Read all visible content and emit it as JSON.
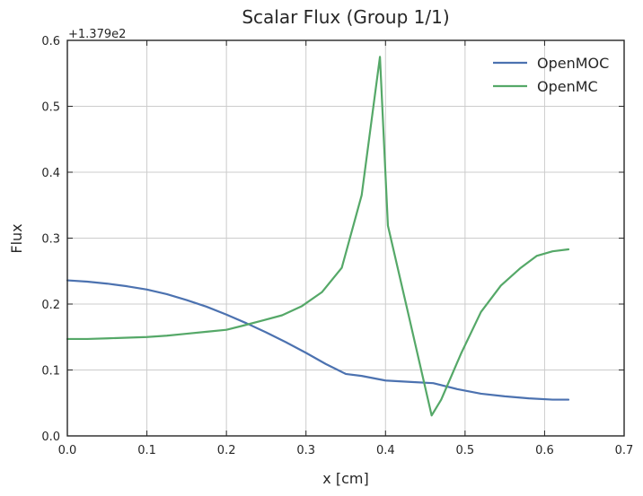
{
  "chart_data": {
    "type": "line",
    "title": "Scalar Flux (Group 1/1)",
    "xlabel": "x [cm]",
    "ylabel": "Flux",
    "y_offset_label": "+1.379e2",
    "xlim": [
      0.0,
      0.7
    ],
    "ylim": [
      0.0,
      0.6
    ],
    "xticks": [
      "0.0",
      "0.1",
      "0.2",
      "0.3",
      "0.4",
      "0.5",
      "0.6",
      "0.7"
    ],
    "yticks": [
      "0.0",
      "0.1",
      "0.2",
      "0.3",
      "0.4",
      "0.5",
      "0.6"
    ],
    "grid": true,
    "legend_position": "top-right",
    "series": [
      {
        "name": "OpenMOC",
        "color": "#4c72b0",
        "x": [
          0.0,
          0.025,
          0.05,
          0.075,
          0.1,
          0.125,
          0.15,
          0.175,
          0.2,
          0.225,
          0.25,
          0.275,
          0.3,
          0.325,
          0.35,
          0.37,
          0.4,
          0.43,
          0.46,
          0.49,
          0.52,
          0.55,
          0.58,
          0.61,
          0.63
        ],
        "y": [
          0.236,
          0.234,
          0.231,
          0.227,
          0.222,
          0.215,
          0.206,
          0.196,
          0.184,
          0.171,
          0.157,
          0.142,
          0.126,
          0.109,
          0.094,
          0.091,
          0.084,
          0.082,
          0.08,
          0.071,
          0.064,
          0.06,
          0.057,
          0.055,
          0.055
        ]
      },
      {
        "name": "OpenMC",
        "color": "#55a868",
        "x": [
          0.0,
          0.025,
          0.05,
          0.075,
          0.1,
          0.125,
          0.15,
          0.175,
          0.2,
          0.22,
          0.245,
          0.27,
          0.295,
          0.32,
          0.345,
          0.37,
          0.393,
          0.403,
          0.43,
          0.458,
          0.47,
          0.495,
          0.52,
          0.545,
          0.57,
          0.59,
          0.61,
          0.63
        ],
        "y": [
          0.147,
          0.147,
          0.148,
          0.149,
          0.15,
          0.152,
          0.155,
          0.158,
          0.161,
          0.167,
          0.175,
          0.183,
          0.197,
          0.218,
          0.255,
          0.365,
          0.575,
          0.319,
          0.178,
          0.031,
          0.055,
          0.125,
          0.188,
          0.228,
          0.255,
          0.273,
          0.28,
          0.283
        ]
      }
    ]
  }
}
